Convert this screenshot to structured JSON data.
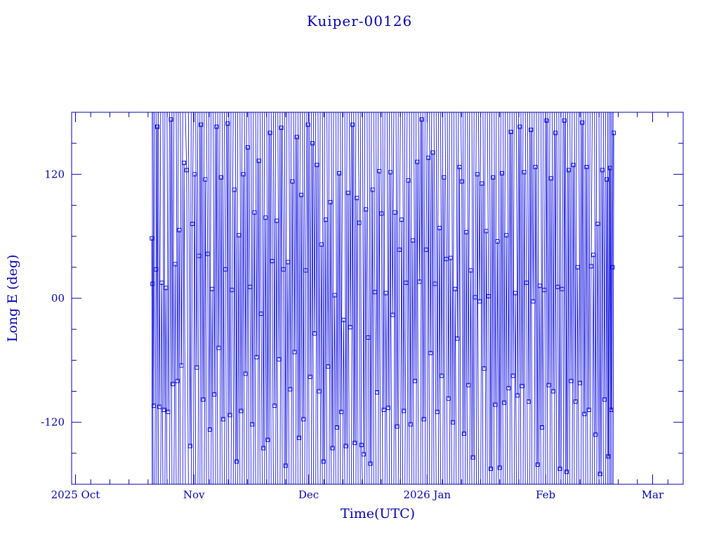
{
  "chart_data": {
    "type": "scatter",
    "title": "Kuiper-00126",
    "xlabel": "Time(UTC)",
    "ylabel": "Long E (deg)",
    "xlim": [
      "2025-09-30",
      "2026-03-09"
    ],
    "ylim": [
      -180,
      180
    ],
    "x_ticks": [
      {
        "label": "2025 Oct",
        "date": "2025-10-01"
      },
      {
        "label": "Nov",
        "date": "2025-11-01"
      },
      {
        "label": "Dec",
        "date": "2025-12-01"
      },
      {
        "label": "2026 Jan",
        "date": "2026-01-01"
      },
      {
        "label": "Feb",
        "date": "2026-02-01"
      },
      {
        "label": "Mar",
        "date": "2026-03-01"
      }
    ],
    "y_ticks": [
      {
        "label": "-120",
        "value": -120
      },
      {
        "label": "00",
        "value": 0
      },
      {
        "label": "120",
        "value": 120
      }
    ],
    "y_minor_step": 30,
    "x_minor_days": [
      5,
      10,
      15,
      20,
      25
    ],
    "data_range": [
      "2025-10-21",
      "2026-02-18"
    ],
    "grid": false,
    "legend": "none",
    "line_color": "#0000dd",
    "axis_color": "#0000aa",
    "series": [
      {
        "points": [
          [
            "2025-10-21T00:00",
            58
          ],
          [
            "2025-10-21T04:00",
            14
          ],
          [
            "2025-10-21T12:00",
            -104
          ],
          [
            "2025-10-22T02:00",
            28
          ],
          [
            "2025-10-22T10:00",
            166
          ],
          [
            "2025-10-23T00:00",
            -105
          ],
          [
            "2025-10-23T14:00",
            15
          ],
          [
            "2025-10-24T04:00",
            -108
          ],
          [
            "2025-10-24T16:00",
            10
          ],
          [
            "2025-10-25T06:00",
            -110
          ],
          [
            "2025-10-26T00:00",
            173
          ],
          [
            "2025-10-26T12:00",
            -83
          ],
          [
            "2025-10-27T02:00",
            33
          ],
          [
            "2025-10-27T16:00",
            -80
          ],
          [
            "2025-10-28T04:00",
            66
          ],
          [
            "2025-10-28T18:00",
            -65
          ],
          [
            "2025-10-29T10:00",
            131
          ],
          [
            "2025-10-30T02:00",
            124
          ],
          [
            "2025-10-31T00:00",
            -143
          ],
          [
            "2025-10-31T14:00",
            72
          ],
          [
            "2025-11-01T04:00",
            120
          ],
          [
            "2025-11-01T18:00",
            -67
          ],
          [
            "2025-11-02T08:00",
            41
          ],
          [
            "2025-11-02T20:00",
            168
          ],
          [
            "2025-11-03T10:00",
            -98
          ],
          [
            "2025-11-04T00:00",
            115
          ],
          [
            "2025-11-04T14:00",
            43
          ],
          [
            "2025-11-05T04:00",
            -127
          ],
          [
            "2025-11-05T18:00",
            9
          ],
          [
            "2025-11-06T08:00",
            -93
          ],
          [
            "2025-11-06T22:00",
            166
          ],
          [
            "2025-11-07T12:00",
            -48
          ],
          [
            "2025-11-08T02:00",
            117
          ],
          [
            "2025-11-08T16:00",
            -117
          ],
          [
            "2025-11-09T06:00",
            28
          ],
          [
            "2025-11-09T20:00",
            169
          ],
          [
            "2025-11-10T10:00",
            -113
          ],
          [
            "2025-11-11T00:00",
            8
          ],
          [
            "2025-11-11T14:00",
            105
          ],
          [
            "2025-11-12T04:00",
            -158
          ],
          [
            "2025-11-12T18:00",
            61
          ],
          [
            "2025-11-13T08:00",
            -109
          ],
          [
            "2025-11-13T22:00",
            120
          ],
          [
            "2025-11-14T12:00",
            -73
          ],
          [
            "2025-11-15T02:00",
            146
          ],
          [
            "2025-11-15T16:00",
            11
          ],
          [
            "2025-11-16T06:00",
            -122
          ],
          [
            "2025-11-16T20:00",
            83
          ],
          [
            "2025-11-17T10:00",
            -57
          ],
          [
            "2025-11-18T00:00",
            133
          ],
          [
            "2025-11-18T14:00",
            -15
          ],
          [
            "2025-11-19T04:00",
            -145
          ],
          [
            "2025-11-19T18:00",
            78
          ],
          [
            "2025-11-20T08:00",
            -137
          ],
          [
            "2025-11-20T22:00",
            160
          ],
          [
            "2025-11-21T12:00",
            36
          ],
          [
            "2025-11-22T02:00",
            -104
          ],
          [
            "2025-11-22T16:00",
            75
          ],
          [
            "2025-11-23T06:00",
            -59
          ],
          [
            "2025-11-23T20:00",
            165
          ],
          [
            "2025-11-24T10:00",
            28
          ],
          [
            "2025-11-25T00:00",
            -162
          ],
          [
            "2025-11-25T14:00",
            35
          ],
          [
            "2025-11-26T04:00",
            -88
          ],
          [
            "2025-11-26T18:00",
            113
          ],
          [
            "2025-11-27T08:00",
            -52
          ],
          [
            "2025-11-27T22:00",
            156
          ],
          [
            "2025-11-28T12:00",
            -135
          ],
          [
            "2025-11-29T02:00",
            100
          ],
          [
            "2025-11-29T16:00",
            -117
          ],
          [
            "2025-11-30T06:00",
            27
          ],
          [
            "2025-11-30T20:00",
            168
          ],
          [
            "2025-12-01T10:00",
            -76
          ],
          [
            "2025-12-02T00:00",
            150
          ],
          [
            "2025-12-02T14:00",
            -34
          ],
          [
            "2025-12-03T04:00",
            129
          ],
          [
            "2025-12-03T18:00",
            -90
          ],
          [
            "2025-12-04T08:00",
            52
          ],
          [
            "2025-12-04T22:00",
            -158
          ],
          [
            "2025-12-05T12:00",
            76
          ],
          [
            "2025-12-06T02:00",
            -66
          ],
          [
            "2025-12-06T16:00",
            93
          ],
          [
            "2025-12-07T06:00",
            -145
          ],
          [
            "2025-12-07T20:00",
            3
          ],
          [
            "2025-12-08T10:00",
            -125
          ],
          [
            "2025-12-09T00:00",
            121
          ],
          [
            "2025-12-09T14:00",
            -110
          ],
          [
            "2025-12-10T04:00",
            -21
          ],
          [
            "2025-12-10T18:00",
            -143
          ],
          [
            "2025-12-11T08:00",
            102
          ],
          [
            "2025-12-11T22:00",
            -28
          ],
          [
            "2025-12-12T12:00",
            168
          ],
          [
            "2025-12-13T02:00",
            -140
          ],
          [
            "2025-12-13T16:00",
            97
          ],
          [
            "2025-12-14T06:00",
            73
          ],
          [
            "2025-12-14T20:00",
            -142
          ],
          [
            "2025-12-15T10:00",
            -151
          ],
          [
            "2025-12-16T00:00",
            86
          ],
          [
            "2025-12-16T14:00",
            -38
          ],
          [
            "2025-12-17T04:00",
            -160
          ],
          [
            "2025-12-17T18:00",
            105
          ],
          [
            "2025-12-18T08:00",
            6
          ],
          [
            "2025-12-18T22:00",
            -91
          ],
          [
            "2025-12-19T12:00",
            123
          ],
          [
            "2025-12-20T02:00",
            82
          ],
          [
            "2025-12-20T16:00",
            -108
          ],
          [
            "2025-12-21T06:00",
            5
          ],
          [
            "2025-12-21T20:00",
            -106
          ],
          [
            "2025-12-22T10:00",
            122
          ],
          [
            "2025-12-23T00:00",
            -16
          ],
          [
            "2025-12-23T14:00",
            83
          ],
          [
            "2025-12-24T04:00",
            -124
          ],
          [
            "2025-12-24T18:00",
            47
          ],
          [
            "2025-12-25T08:00",
            76
          ],
          [
            "2025-12-25T22:00",
            -109
          ],
          [
            "2025-12-26T12:00",
            15
          ],
          [
            "2025-12-27T02:00",
            114
          ],
          [
            "2025-12-27T16:00",
            -122
          ],
          [
            "2025-12-28T06:00",
            56
          ],
          [
            "2025-12-28T20:00",
            -80
          ],
          [
            "2025-12-29T10:00",
            132
          ],
          [
            "2025-12-30T00:00",
            16
          ],
          [
            "2025-12-30T14:00",
            173
          ],
          [
            "2025-12-31T04:00",
            -117
          ],
          [
            "2025-12-31T18:00",
            47
          ],
          [
            "2026-01-01T08:00",
            136
          ],
          [
            "2026-01-01T22:00",
            -53
          ],
          [
            "2026-01-02T12:00",
            141
          ],
          [
            "2026-01-03T02:00",
            14
          ],
          [
            "2026-01-03T16:00",
            -110
          ],
          [
            "2026-01-04T06:00",
            68
          ],
          [
            "2026-01-04T20:00",
            -75
          ],
          [
            "2026-01-05T10:00",
            117
          ],
          [
            "2026-01-06T00:00",
            38
          ],
          [
            "2026-01-06T14:00",
            -97
          ],
          [
            "2026-01-07T04:00",
            39
          ],
          [
            "2026-01-07T18:00",
            -120
          ],
          [
            "2026-01-08T08:00",
            9
          ],
          [
            "2026-01-08T22:00",
            -39
          ],
          [
            "2026-01-09T12:00",
            127
          ],
          [
            "2026-01-10T02:00",
            113
          ],
          [
            "2026-01-10T16:00",
            -131
          ],
          [
            "2026-01-11T06:00",
            64
          ],
          [
            "2026-01-11T20:00",
            -84
          ],
          [
            "2026-01-12T10:00",
            27
          ],
          [
            "2026-01-13T00:00",
            -154
          ],
          [
            "2026-01-13T14:00",
            1
          ],
          [
            "2026-01-14T04:00",
            120
          ],
          [
            "2026-01-14T18:00",
            -3
          ],
          [
            "2026-01-15T08:00",
            111
          ],
          [
            "2026-01-15T22:00",
            -68
          ],
          [
            "2026-01-16T12:00",
            65
          ],
          [
            "2026-01-17T02:00",
            2
          ],
          [
            "2026-01-17T16:00",
            -165
          ],
          [
            "2026-01-18T06:00",
            117
          ],
          [
            "2026-01-18T20:00",
            -103
          ],
          [
            "2026-01-19T10:00",
            55
          ],
          [
            "2026-01-20T00:00",
            -164
          ],
          [
            "2026-01-20T14:00",
            121
          ],
          [
            "2026-01-21T04:00",
            -101
          ],
          [
            "2026-01-21T18:00",
            61
          ],
          [
            "2026-01-22T08:00",
            -87
          ],
          [
            "2026-01-22T22:00",
            161
          ],
          [
            "2026-01-23T12:00",
            -75
          ],
          [
            "2026-01-24T02:00",
            5
          ],
          [
            "2026-01-24T16:00",
            -94
          ],
          [
            "2026-01-25T06:00",
            166
          ],
          [
            "2026-01-25T20:00",
            -85
          ],
          [
            "2026-01-26T10:00",
            122
          ],
          [
            "2026-01-27T00:00",
            15
          ],
          [
            "2026-01-27T14:00",
            -100
          ],
          [
            "2026-01-28T04:00",
            163
          ],
          [
            "2026-01-28T18:00",
            -3
          ],
          [
            "2026-01-29T08:00",
            127
          ],
          [
            "2026-01-29T22:00",
            -161
          ],
          [
            "2026-01-30T12:00",
            12
          ],
          [
            "2026-01-31T02:00",
            -125
          ],
          [
            "2026-01-31T16:00",
            8
          ],
          [
            "2026-02-01T06:00",
            172
          ],
          [
            "2026-02-01T20:00",
            -84
          ],
          [
            "2026-02-02T10:00",
            116
          ],
          [
            "2026-02-03T00:00",
            -90
          ],
          [
            "2026-02-03T14:00",
            160
          ],
          [
            "2026-02-04T04:00",
            11
          ],
          [
            "2026-02-04T18:00",
            -165
          ],
          [
            "2026-02-05T08:00",
            9
          ],
          [
            "2026-02-05T22:00",
            172
          ],
          [
            "2026-02-06T12:00",
            -168
          ],
          [
            "2026-02-07T02:00",
            124
          ],
          [
            "2026-02-07T16:00",
            -80
          ],
          [
            "2026-02-08T06:00",
            129
          ],
          [
            "2026-02-08T20:00",
            -100
          ],
          [
            "2026-02-09T10:00",
            30
          ],
          [
            "2026-02-10T00:00",
            -82
          ],
          [
            "2026-02-10T14:00",
            170
          ],
          [
            "2026-02-11T04:00",
            -112
          ],
          [
            "2026-02-11T18:00",
            127
          ],
          [
            "2026-02-12T08:00",
            -108
          ],
          [
            "2026-02-12T22:00",
            31
          ],
          [
            "2026-02-13T12:00",
            42
          ],
          [
            "2026-02-14T02:00",
            -132
          ],
          [
            "2026-02-14T16:00",
            72
          ],
          [
            "2026-02-15T06:00",
            -170
          ],
          [
            "2026-02-15T20:00",
            124
          ],
          [
            "2026-02-16T10:00",
            -98
          ],
          [
            "2026-02-17T00:00",
            115
          ],
          [
            "2026-02-17T10:00",
            -153
          ],
          [
            "2026-02-17T20:00",
            126
          ],
          [
            "2026-02-18T04:00",
            -108
          ],
          [
            "2026-02-18T12:00",
            30
          ],
          [
            "2026-02-18T20:00",
            160
          ]
        ]
      }
    ]
  }
}
